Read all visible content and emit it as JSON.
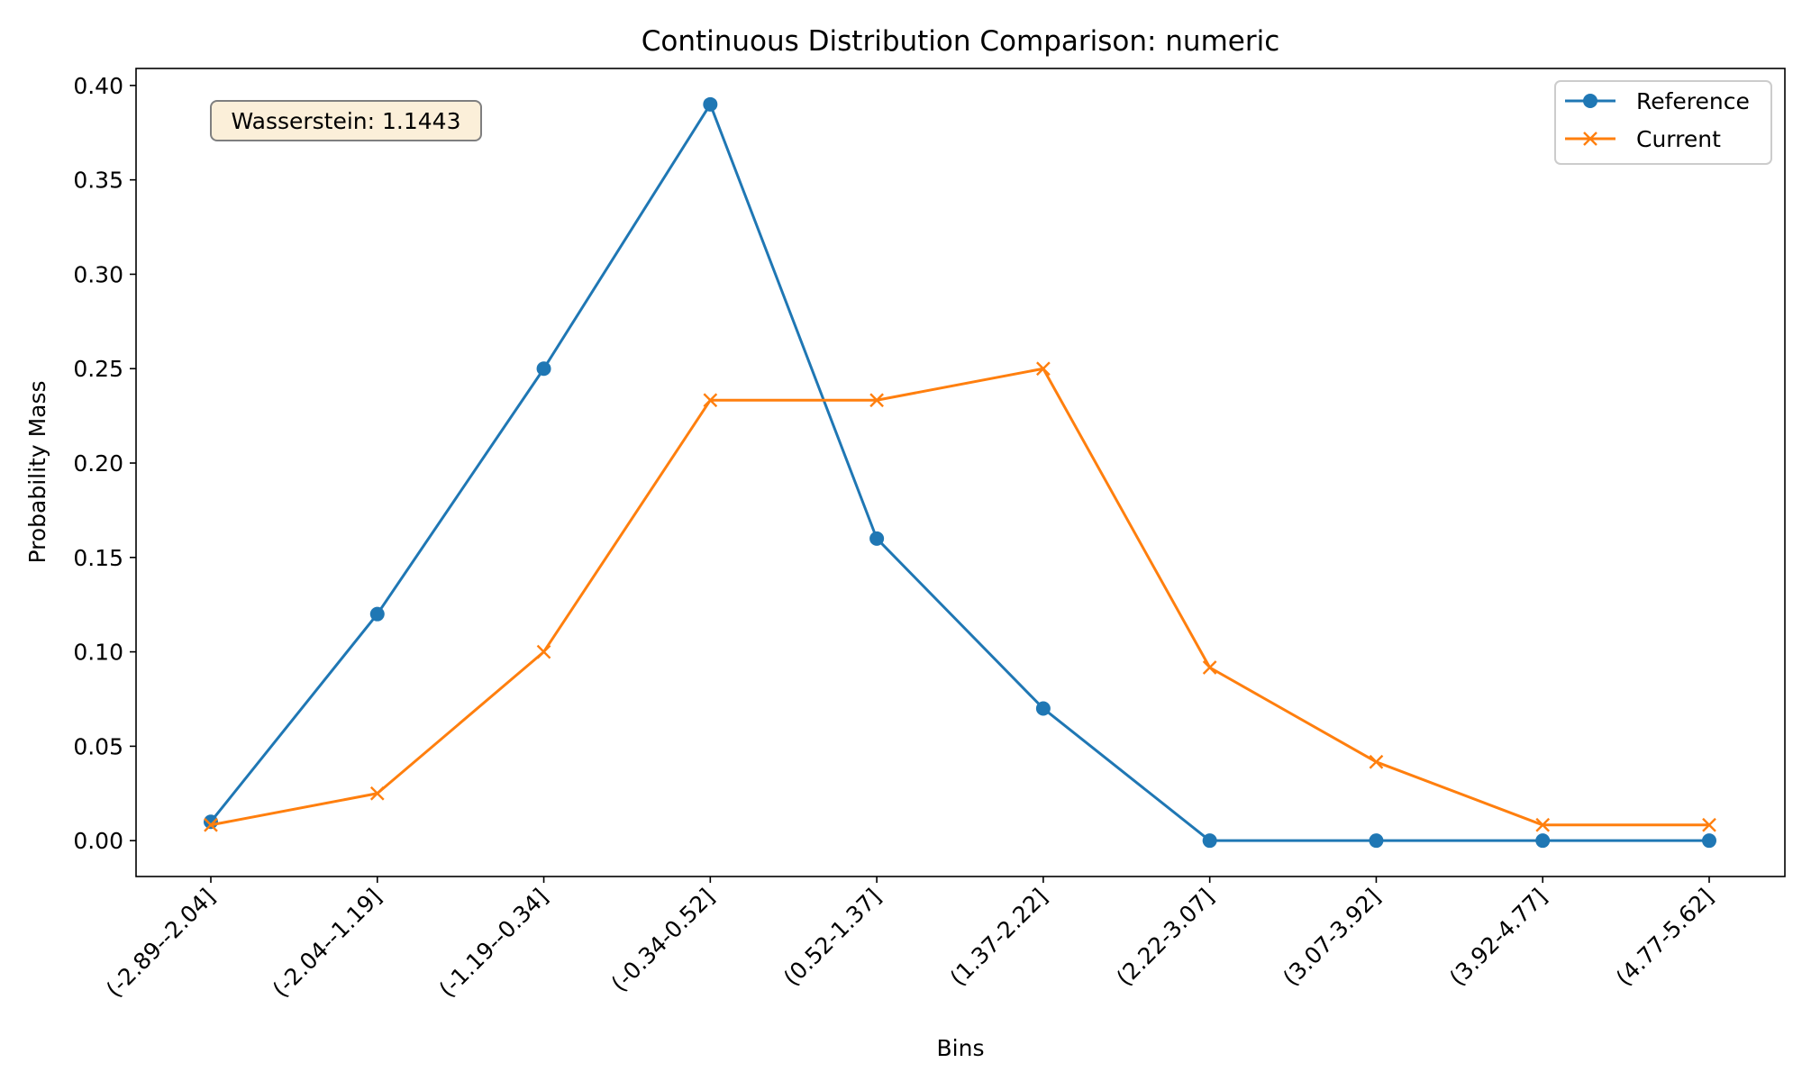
{
  "chart_data": {
    "type": "line",
    "title": "Continuous Distribution Comparison: numeric",
    "xlabel": "Bins",
    "ylabel": "Probability Mass",
    "categories": [
      "(-2.89--2.04]",
      "(-2.04--1.19]",
      "(-1.19--0.34]",
      "(-0.34-0.52]",
      "(0.52-1.37]",
      "(1.37-2.22]",
      "(2.22-3.07]",
      "(3.07-3.92]",
      "(3.92-4.77]",
      "(4.77-5.62]"
    ],
    "ylim": [
      -0.019,
      0.409
    ],
    "yticks": [
      0.0,
      0.05,
      0.1,
      0.15,
      0.2,
      0.25,
      0.3,
      0.35,
      0.4
    ],
    "ytick_labels": [
      "0.00",
      "0.05",
      "0.10",
      "0.15",
      "0.20",
      "0.25",
      "0.30",
      "0.35",
      "0.40"
    ],
    "grid": false,
    "legend_position": "top-right",
    "series": [
      {
        "name": "Reference",
        "color": "#1f77b4",
        "marker": "circle",
        "values": [
          0.01,
          0.12,
          0.25,
          0.39,
          0.16,
          0.07,
          0.0,
          0.0,
          0.0,
          0.0
        ]
      },
      {
        "name": "Current",
        "color": "#ff7f0e",
        "marker": "x",
        "values": [
          0.0083,
          0.025,
          0.1,
          0.2333,
          0.2333,
          0.25,
          0.0917,
          0.0417,
          0.0083,
          0.0083
        ]
      }
    ],
    "annotation": {
      "text": "Wasserstein: 1.1443",
      "position": "top-left",
      "fill": "#fbefd9",
      "border": "#7f7f7f"
    }
  }
}
